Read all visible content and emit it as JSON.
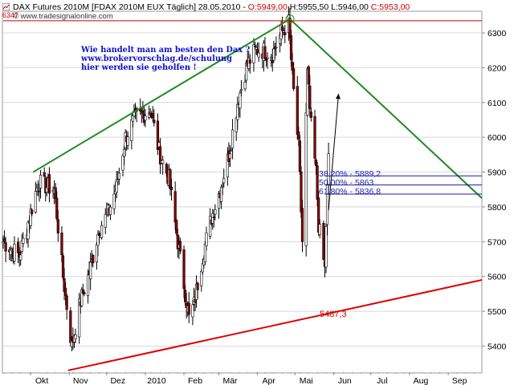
{
  "header": {
    "title": "DAX Futures 2010M [FDAX 2010M EUX  Täglich] 28.05.2010 - ",
    "open": "O:5949,00",
    "high": "H:5955,50",
    "low": "L:5946,00",
    "close": "C:5953,00",
    "source": "© www.tradesignalonline.com",
    "left_value": "6347"
  },
  "annotation": {
    "line1": "Wie handelt man am besten den Dax ?",
    "line2": "www.brokervorschlag.de/schulung",
    "line3": "hier werden sie geholfen !"
  },
  "fib_labels": [
    "38,20% - 5889,2",
    "50,00% - 5863",
    "61,80% - 5836,8"
  ],
  "support_label": "5487,3",
  "colors": {
    "candle_up": "#ffffff",
    "candle_down": "#8b0000",
    "trend_green": "#1f8a1f",
    "support_red": "#e00000",
    "fib_blue": "#1a1aa8",
    "peak_line": "#cc0000"
  },
  "chart_data": {
    "type": "candlestick",
    "title": "DAX Futures 2010M [FDAX 2010M EUX  Täglich] 28.05.2010",
    "ylim": [
      5325,
      6360
    ],
    "yticks": [
      5400,
      5500,
      5600,
      5700,
      5800,
      5900,
      6000,
      6100,
      6200,
      6300
    ],
    "ytick_labels": [
      "5400",
      "5500",
      "5600",
      "5700",
      "5800",
      "5900",
      "6000",
      "6100",
      "6200",
      "6300"
    ],
    "xtick_labels": [
      "Okt",
      "Nov",
      "Dez",
      "2010",
      "Feb",
      "Mär",
      "Apr",
      "Mai",
      "Jun",
      "Jul",
      "Aug",
      "Sep"
    ],
    "x_axis_start": "2009-09-09",
    "x_axis_end": "2010-09-28",
    "xtick_dates": [
      "2009-10-01",
      "2009-11-01",
      "2009-12-01",
      "2010-01-01",
      "2010-02-01",
      "2010-03-01",
      "2010-04-01",
      "2010-05-01",
      "2010-06-01",
      "2010-07-01",
      "2010-08-01",
      "2010-09-01"
    ],
    "close_anchors": [
      [
        "2009-09-09",
        5700
      ],
      [
        "2009-09-22",
        5660
      ],
      [
        "2009-09-30",
        5770
      ],
      [
        "2009-10-07",
        5870
      ],
      [
        "2009-10-20",
        5850
      ],
      [
        "2009-10-27",
        5600
      ],
      [
        "2009-11-03",
        5400
      ],
      [
        "2009-11-10",
        5530
      ],
      [
        "2009-11-17",
        5610
      ],
      [
        "2009-11-25",
        5740
      ],
      [
        "2009-12-02",
        5780
      ],
      [
        "2009-12-09",
        5860
      ],
      [
        "2009-12-16",
        6000
      ],
      [
        "2009-12-23",
        6050
      ],
      [
        "2010-01-05",
        6080
      ],
      [
        "2010-01-12",
        5960
      ],
      [
        "2010-01-20",
        5880
      ],
      [
        "2010-01-27",
        5700
      ],
      [
        "2010-02-05",
        5480
      ],
      [
        "2010-02-09",
        5520
      ],
      [
        "2010-02-16",
        5660
      ],
      [
        "2010-02-23",
        5770
      ],
      [
        "2010-03-02",
        5850
      ],
      [
        "2010-03-09",
        5950
      ],
      [
        "2010-03-16",
        6100
      ],
      [
        "2010-03-23",
        6200
      ],
      [
        "2010-03-30",
        6250
      ],
      [
        "2010-04-06",
        6250
      ],
      [
        "2010-04-13",
        6240
      ],
      [
        "2010-04-20",
        6300
      ],
      [
        "2010-04-26",
        6330
      ],
      [
        "2010-04-29",
        6170
      ],
      [
        "2010-05-04",
        5970
      ],
      [
        "2010-05-07",
        5700
      ],
      [
        "2010-05-11",
        6180
      ],
      [
        "2010-05-14",
        6030
      ],
      [
        "2010-05-18",
        5900
      ],
      [
        "2010-05-20",
        5750
      ],
      [
        "2010-05-25",
        5620
      ],
      [
        "2010-05-26",
        5750
      ],
      [
        "2010-05-28",
        5953
      ]
    ],
    "trendlines": [
      {
        "name": "upper_left",
        "color": "#1f8a1f",
        "from": [
          "2009-10-03",
          5900
        ],
        "to": [
          "2010-04-27",
          6340
        ]
      },
      {
        "name": "upper_right",
        "color": "#1f8a1f",
        "from": [
          "2010-04-27",
          6340
        ],
        "to": [
          "2010-09-28",
          5825
        ]
      },
      {
        "name": "support",
        "color": "#e00000",
        "from": [
          "2009-10-31",
          5330
        ],
        "to": [
          "2010-09-28",
          5590
        ]
      },
      {
        "name": "peak",
        "color": "#cc0000",
        "from": [
          "2009-09-09",
          6335
        ],
        "to": [
          "2010-09-28",
          6335
        ]
      }
    ],
    "fib_levels": [
      5889.2,
      5863,
      5836.8
    ],
    "fib_line_start": "2010-05-25",
    "arrow": {
      "from": [
        "2010-05-28",
        5790
      ],
      "to": [
        "2010-06-05",
        6125
      ]
    }
  }
}
